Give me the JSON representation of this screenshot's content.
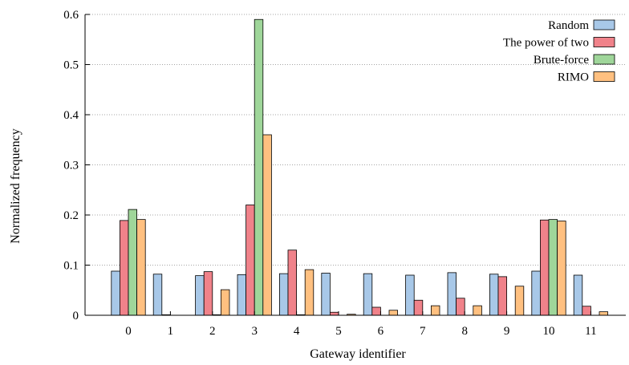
{
  "chart_data": {
    "type": "bar",
    "title": "",
    "xlabel": "Gateway identifier",
    "ylabel": "Normalized frequency",
    "categories": [
      "0",
      "1",
      "2",
      "3",
      "4",
      "5",
      "6",
      "7",
      "8",
      "9",
      "10",
      "11"
    ],
    "ylim": [
      0,
      0.6
    ],
    "yticks": [
      "0",
      "0.1",
      "0.2",
      "0.3",
      "0.4",
      "0.5",
      "0.6"
    ],
    "grid": "horizontal-dotted",
    "legend_position": "top-right",
    "series": [
      {
        "name": "Random",
        "color": "#a8c8e8",
        "values": [
          0.088,
          0.082,
          0.079,
          0.081,
          0.083,
          0.084,
          0.083,
          0.08,
          0.085,
          0.082,
          0.088,
          0.08
        ]
      },
      {
        "name": "The power of two",
        "color": "#f0828a",
        "values": [
          0.189,
          0.001,
          0.087,
          0.22,
          0.13,
          0.006,
          0.016,
          0.03,
          0.034,
          0.077,
          0.19,
          0.018
        ]
      },
      {
        "name": "Brute-force",
        "color": "#9fd69a",
        "values": [
          0.211,
          0.0,
          0.001,
          0.59,
          0.001,
          0.0,
          0.0,
          0.0,
          0.0,
          0.0,
          0.191,
          0.0
        ]
      },
      {
        "name": "RIMO",
        "color": "#ffc080",
        "values": [
          0.191,
          0.0,
          0.051,
          0.36,
          0.091,
          0.002,
          0.01,
          0.019,
          0.019,
          0.058,
          0.188,
          0.007
        ]
      }
    ]
  }
}
